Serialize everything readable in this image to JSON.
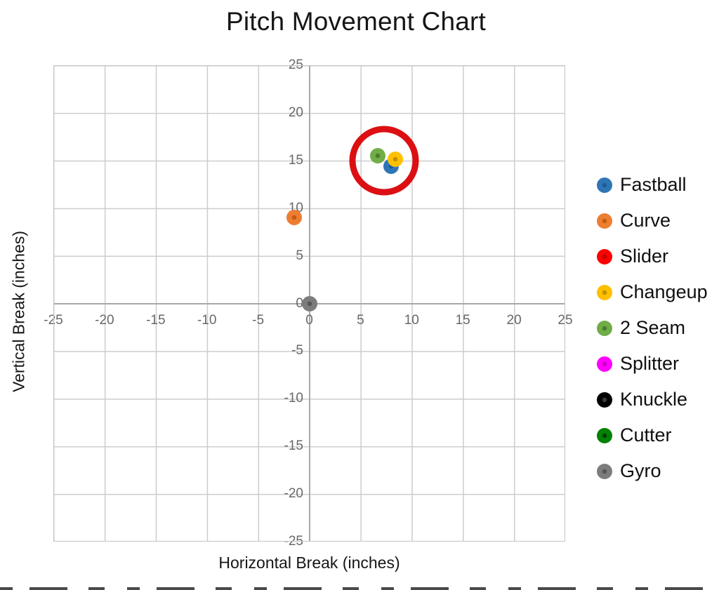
{
  "title": "Pitch Movement Chart",
  "chart_data": {
    "type": "scatter",
    "title": "Pitch Movement Chart",
    "xlabel": "Horizontal Break (inches)",
    "ylabel": "Vertical Break (inches)",
    "xlim": [
      -25,
      25
    ],
    "ylim": [
      -25,
      25
    ],
    "grid": true,
    "grid_step": 5,
    "legend_position": "right",
    "x_ticks": [
      -25,
      -20,
      -15,
      -10,
      -5,
      0,
      5,
      10,
      15,
      20,
      25
    ],
    "y_ticks": [
      25,
      20,
      15,
      10,
      5,
      0,
      -5,
      -10,
      -15,
      -20,
      -25
    ],
    "series": [
      {
        "name": "Fastball",
        "color": "#2E75B6",
        "center_color": "#1E5C95",
        "points": [
          {
            "x": 8,
            "y": 14.4
          }
        ]
      },
      {
        "name": "Curve",
        "color": "#ED7D31",
        "center_color": "#C55A11",
        "points": [
          {
            "x": -1.5,
            "y": 9
          }
        ]
      },
      {
        "name": "Slider",
        "color": "#FF0000",
        "center_color": "#C00000",
        "points": []
      },
      {
        "name": "Changeup",
        "color": "#FFC000",
        "center_color": "#BF9000",
        "points": [
          {
            "x": 8.4,
            "y": 15.1
          }
        ]
      },
      {
        "name": "2 Seam",
        "color": "#70AD47",
        "center_color": "#4C7A2E",
        "points": [
          {
            "x": 6.7,
            "y": 15.5
          }
        ]
      },
      {
        "name": "Splitter",
        "color": "#FF00FF",
        "center_color": "#C800C8",
        "points": []
      },
      {
        "name": "Knuckle",
        "color": "#000000",
        "center_color": "#3A3A3A",
        "points": []
      },
      {
        "name": "Cutter",
        "color": "#038103",
        "center_color": "#013D01",
        "points": []
      },
      {
        "name": "Gyro",
        "color": "#7C7C7C",
        "center_color": "#565656",
        "points": [
          {
            "x": 0,
            "y": 0
          }
        ]
      }
    ],
    "annotation": {
      "type": "circle",
      "color": "#DC1012",
      "center_x": 7.3,
      "center_y": 15,
      "radius_inches": 3.4,
      "stroke_px": 9
    }
  }
}
